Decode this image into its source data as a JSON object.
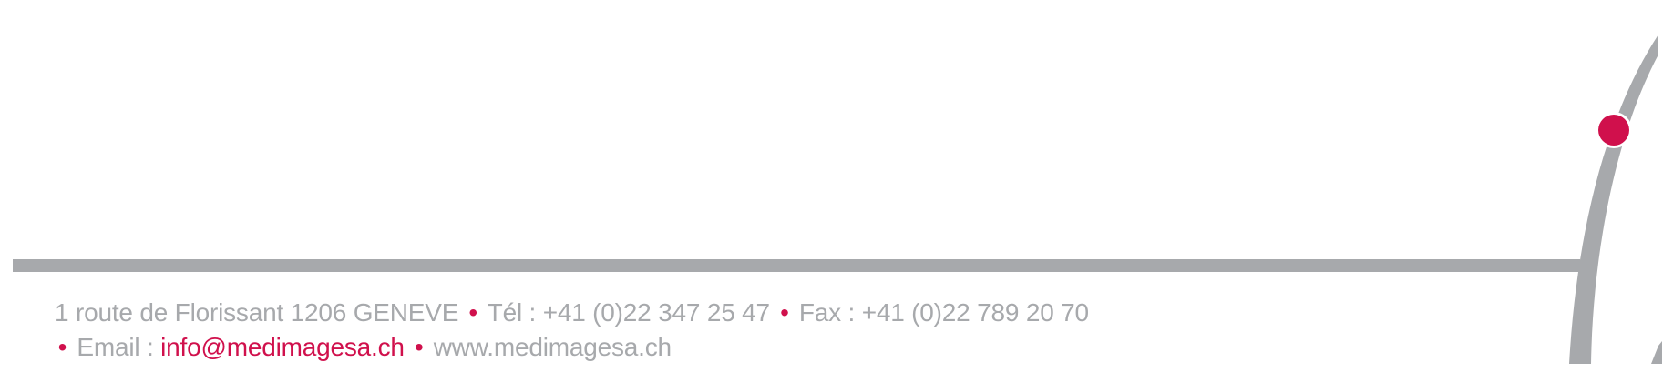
{
  "footer": {
    "line1": {
      "address": "1 route de Florissant 1206 GENEVE",
      "bullet": "•",
      "phone": "Tél : +41 (0)22 347 25 47",
      "fax": "Fax : +41 (0)22 789 20 70"
    },
    "line2": {
      "bullet": "•",
      "email_label": "Email : ",
      "email": "info@medimagesa.ch",
      "website": "www.medimagesa.ch"
    }
  },
  "colors": {
    "accent": "#d0104c",
    "gray": "#a7a9ac",
    "background": "#ffffff"
  },
  "logo": {
    "icon": "letter-i-swoosh-logo"
  }
}
